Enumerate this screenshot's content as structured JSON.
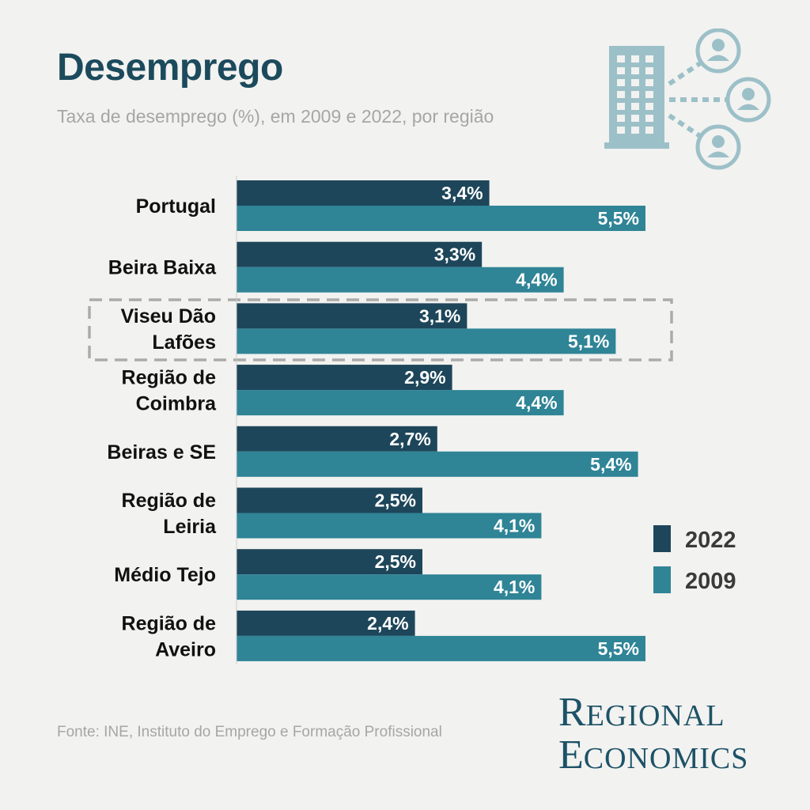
{
  "title": "Desemprego",
  "subtitle": "Taxa de desemprego (%), em 2009 e 2022, por região",
  "source": "Fonte: INE, Instituto do Emprego e Formação Profissional",
  "brand": {
    "word1_initial": "R",
    "word1_rest": "EGIONAL",
    "word2_initial": "E",
    "word2_rest": "CONOMICS"
  },
  "colors": {
    "series_2022": "#1d465a",
    "series_2009": "#2f8496",
    "icon": "#9cc0c8",
    "highlight_border": "#ababab"
  },
  "icon": "building-network-people-icon",
  "chart_data": {
    "type": "bar",
    "orientation": "horizontal",
    "categories": [
      [
        "Portugal"
      ],
      [
        "Beira Baixa"
      ],
      [
        "Viseu Dão",
        "Lafões"
      ],
      [
        "Região de",
        "Coimbra"
      ],
      [
        "Beiras e SE"
      ],
      [
        "Região de",
        "Leiria"
      ],
      [
        "Médio Tejo"
      ],
      [
        "Região de",
        "Aveiro"
      ]
    ],
    "series": [
      {
        "name": "2022",
        "values": [
          3.4,
          3.3,
          3.1,
          2.9,
          2.7,
          2.5,
          2.5,
          2.4
        ],
        "labels": [
          "3,4%",
          "3,3%",
          "3,1%",
          "2,9%",
          "2,7%",
          "2,5%",
          "2,5%",
          "2,4%"
        ]
      },
      {
        "name": "2009",
        "values": [
          5.5,
          4.4,
          5.1,
          4.4,
          5.4,
          4.1,
          4.1,
          5.5
        ],
        "labels": [
          "5,5%",
          "4,4%",
          "5,1%",
          "4,4%",
          "5,4%",
          "4,1%",
          "4,1%",
          "5,5%"
        ]
      }
    ],
    "highlighted_category_index": 2,
    "legend_position": "right",
    "grid": false
  }
}
